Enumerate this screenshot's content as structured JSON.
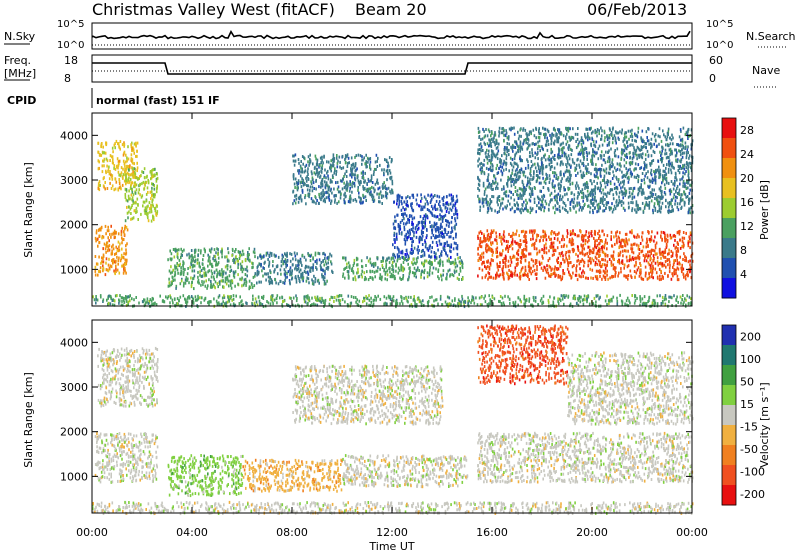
{
  "header": {
    "title": "Christmas Valley West (fitACF)",
    "beam": "Beam 20",
    "date": "06/Feb/2013"
  },
  "top_panels": {
    "nsky_label": "N.Sky",
    "nsky_ticks": [
      "10^5",
      "10^0"
    ],
    "nsearch_label": "N.Search",
    "freq_label_1": "Freq.",
    "freq_label_2": "[MHz]",
    "freq_ticks": [
      "18",
      "8"
    ],
    "nave_label": "Nave",
    "nave_ticks": [
      "60",
      "0"
    ],
    "cpid_label": "CPID",
    "cpid_text": "normal (fast) 151 IF"
  },
  "colors": {
    "power_scale": [
      "#1010e0",
      "#2050b0",
      "#3a7a8a",
      "#4aa060",
      "#9ccc30",
      "#e8c020",
      "#f09010",
      "#f05010",
      "#e81010"
    ],
    "velocity_scale": [
      "#2030b0",
      "#207870",
      "#40a040",
      "#80d040",
      "#c8c8c0",
      "#f0b040",
      "#f08020",
      "#f05020",
      "#e81010"
    ]
  },
  "chart_data": [
    {
      "type": "heatmap",
      "name": "power",
      "ylabel": "Slant Range [km]",
      "xlabel": "Time UT",
      "xticks": [
        "00:00",
        "04:00",
        "08:00",
        "12:00",
        "16:00",
        "20:00",
        "00:00"
      ],
      "yticks": [
        "1000",
        "2000",
        "3000",
        "4000"
      ],
      "xlim": [
        0,
        24
      ],
      "ylim": [
        180,
        4500
      ],
      "colorbar": {
        "label": "Power [dB]",
        "ticks": [
          "4",
          "8",
          "12",
          "16",
          "20",
          "24",
          "28"
        ],
        "range": [
          0,
          30
        ]
      },
      "regions": [
        {
          "t0": 0.1,
          "t1": 1.4,
          "r0": 900,
          "r1": 2000,
          "v": 24
        },
        {
          "t0": 0.2,
          "t1": 1.8,
          "r0": 2800,
          "r1": 3900,
          "v": 18
        },
        {
          "t0": 1.3,
          "t1": 2.6,
          "r0": 2100,
          "r1": 3300,
          "v": 14
        },
        {
          "t0": 3.0,
          "t1": 6.5,
          "r0": 600,
          "r1": 1500,
          "v": 10
        },
        {
          "t0": 6.5,
          "t1": 9.6,
          "r0": 700,
          "r1": 1400,
          "v": 8
        },
        {
          "t0": 10.0,
          "t1": 14.8,
          "r0": 800,
          "r1": 1300,
          "v": 10
        },
        {
          "t0": 8.0,
          "t1": 12.0,
          "r0": 2500,
          "r1": 3600,
          "v": 6
        },
        {
          "t0": 12.0,
          "t1": 14.6,
          "r0": 1300,
          "r1": 2700,
          "v": 5
        },
        {
          "t0": 15.4,
          "t1": 24.0,
          "r0": 800,
          "r1": 1900,
          "v": 28
        },
        {
          "t0": 15.4,
          "t1": 24.0,
          "r0": 2300,
          "r1": 4200,
          "v": 7
        },
        {
          "t0": 0.0,
          "t1": 24.0,
          "r0": 200,
          "r1": 450,
          "v": 12
        }
      ]
    },
    {
      "type": "heatmap",
      "name": "velocity",
      "ylabel": "Slant Range [km]",
      "xlabel": "Time UT",
      "xticks": [
        "00:00",
        "04:00",
        "08:00",
        "12:00",
        "16:00",
        "20:00",
        "00:00"
      ],
      "yticks": [
        "1000",
        "2000",
        "3000",
        "4000"
      ],
      "xlim": [
        0,
        24
      ],
      "ylim": [
        180,
        4500
      ],
      "colorbar": {
        "label": "Velocity [m s⁻¹]",
        "ticks": [
          "200",
          "100",
          "50",
          "15",
          "-15",
          "-50",
          "-100",
          "-200"
        ],
        "range": [
          -250,
          250
        ]
      },
      "regions": [
        {
          "t0": 0.1,
          "t1": 2.6,
          "r0": 900,
          "r1": 2000,
          "v": 0
        },
        {
          "t0": 0.2,
          "t1": 2.6,
          "r0": 2600,
          "r1": 3900,
          "v": 0
        },
        {
          "t0": 3.0,
          "t1": 6.0,
          "r0": 600,
          "r1": 1500,
          "v": 60
        },
        {
          "t0": 6.0,
          "t1": 10.0,
          "r0": 700,
          "r1": 1400,
          "v": -40
        },
        {
          "t0": 10.0,
          "t1": 15.0,
          "r0": 800,
          "r1": 1500,
          "v": 0
        },
        {
          "t0": 8.0,
          "t1": 14.0,
          "r0": 2200,
          "r1": 3500,
          "v": 0
        },
        {
          "t0": 15.4,
          "t1": 24.0,
          "r0": 900,
          "r1": 2000,
          "v": 0
        },
        {
          "t0": 15.4,
          "t1": 19.0,
          "r0": 3100,
          "r1": 4400,
          "v": -200
        },
        {
          "t0": 19.0,
          "t1": 24.0,
          "r0": 2200,
          "r1": 3800,
          "v": 0
        },
        {
          "t0": 0.0,
          "t1": 24.0,
          "r0": 200,
          "r1": 450,
          "v": -30
        }
      ]
    }
  ]
}
